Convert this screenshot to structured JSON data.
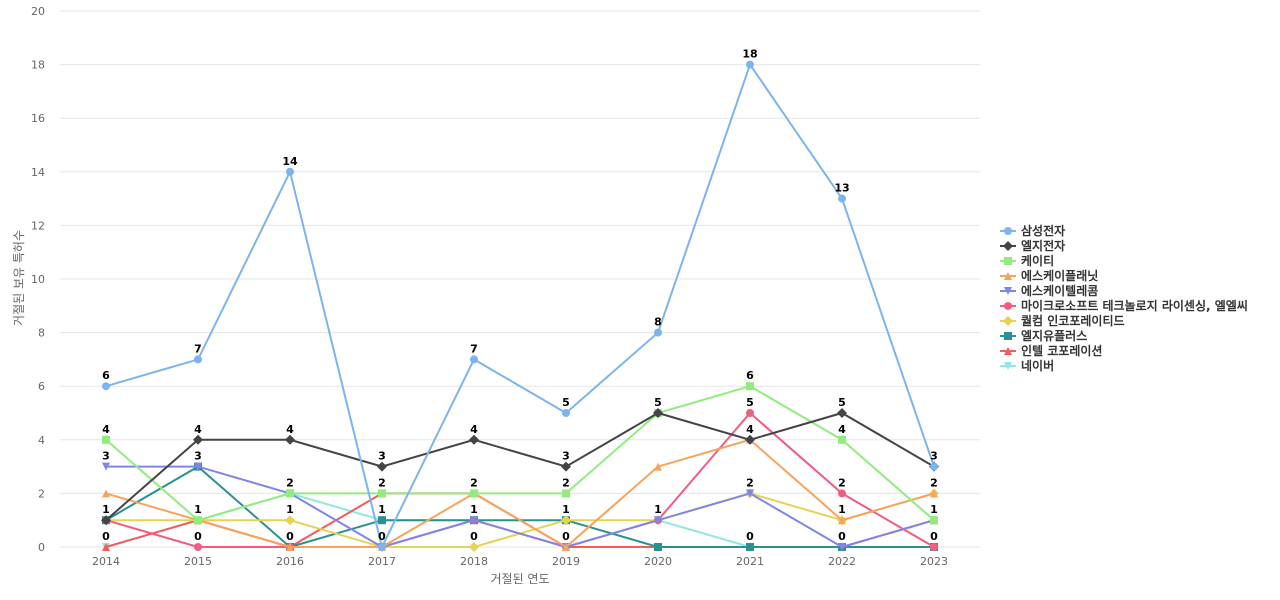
{
  "chart_data": {
    "type": "line",
    "xlabel": "거절된 연도",
    "ylabel": "거절된 보유 특허수",
    "ylim": [
      0,
      20
    ],
    "yticks": [
      0,
      2,
      4,
      6,
      8,
      10,
      12,
      14,
      16,
      18,
      20
    ],
    "grid": true,
    "legend_position": "right",
    "x": [
      "2014",
      "2015",
      "2016",
      "2017",
      "2018",
      "2019",
      "2020",
      "2021",
      "2022",
      "2023"
    ],
    "series": [
      {
        "name": "삼성전자",
        "color": "#7cb5ec",
        "marker": "circle",
        "values": [
          6,
          7,
          14,
          0,
          7,
          5,
          8,
          18,
          13,
          3
        ],
        "labeled": true
      },
      {
        "name": "엘지전자",
        "color": "#434348",
        "marker": "diamond",
        "values": [
          1,
          4,
          4,
          3,
          4,
          3,
          5,
          4,
          5,
          3
        ],
        "labeled": true
      },
      {
        "name": "케이티",
        "color": "#90ed7d",
        "marker": "square",
        "values": [
          4,
          1,
          2,
          2,
          2,
          2,
          5,
          6,
          4,
          1
        ],
        "labeled": true
      },
      {
        "name": "에스케이플래닛",
        "color": "#f7a35c",
        "marker": "triangle",
        "values": [
          2,
          1,
          0,
          0,
          2,
          0,
          3,
          4,
          1,
          2
        ],
        "labeled": false
      },
      {
        "name": "에스케이텔레콤",
        "color": "#8085e9",
        "marker": "triangle-down",
        "values": [
          3,
          3,
          2,
          0,
          1,
          0,
          1,
          2,
          0,
          1
        ],
        "labeled": true
      },
      {
        "name": "마이크로소프트 테크놀로지 라이센싱, 엘엘씨",
        "color": "#f15c80",
        "marker": "circle",
        "values": [
          1,
          0,
          0,
          0,
          1,
          0,
          1,
          5,
          2,
          0
        ],
        "labeled": true
      },
      {
        "name": "퀄컴 인코포레이티드",
        "color": "#e4d354",
        "marker": "diamond",
        "values": [
          1,
          1,
          1,
          0,
          0,
          1,
          1,
          2,
          1,
          2
        ],
        "labeled": true
      },
      {
        "name": "엘지유플러스",
        "color": "#2b908f",
        "marker": "square",
        "values": [
          1,
          3,
          0,
          1,
          1,
          1,
          0,
          0,
          0,
          0
        ],
        "labeled": false
      },
      {
        "name": "인텔 코포레이션",
        "color": "#f45b5b",
        "marker": "triangle",
        "values": [
          0,
          1,
          0,
          2,
          2,
          0,
          0,
          0,
          0,
          1
        ],
        "labeled": false
      },
      {
        "name": "네이버",
        "color": "#91e8e1",
        "marker": "triangle-down",
        "values": [
          0,
          1,
          2,
          1,
          1,
          0,
          1,
          0,
          0,
          0
        ],
        "labeled": true
      }
    ]
  }
}
